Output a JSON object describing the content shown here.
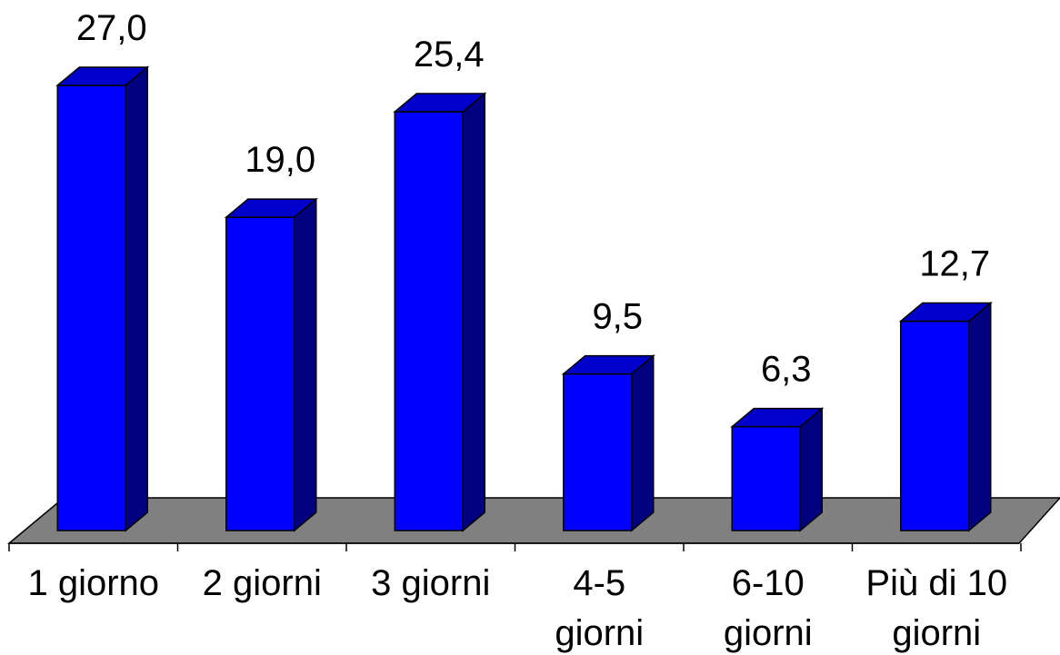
{
  "chart_data": {
    "type": "bar",
    "style": "3d-column",
    "categories": [
      [
        "1 giorno"
      ],
      [
        "2 giorni"
      ],
      [
        "3 giorni"
      ],
      [
        "4-5",
        "giorni"
      ],
      [
        "6-10",
        "giorni"
      ],
      [
        "Più di 10",
        "giorni"
      ]
    ],
    "values": [
      27.0,
      19.0,
      25.4,
      9.5,
      6.3,
      12.7
    ],
    "value_labels": [
      "27,0",
      "19,0",
      "25,4",
      "9,5",
      "6,3",
      "12,7"
    ],
    "title": "",
    "xlabel": "",
    "ylabel": "",
    "ylim": [
      0,
      27
    ],
    "grid": false,
    "legend": "none",
    "colors": {
      "bar_front": "#0000ff",
      "bar_top": "#0000cc",
      "bar_side": "#000080",
      "floor": "#808080",
      "outline": "#000000"
    }
  }
}
